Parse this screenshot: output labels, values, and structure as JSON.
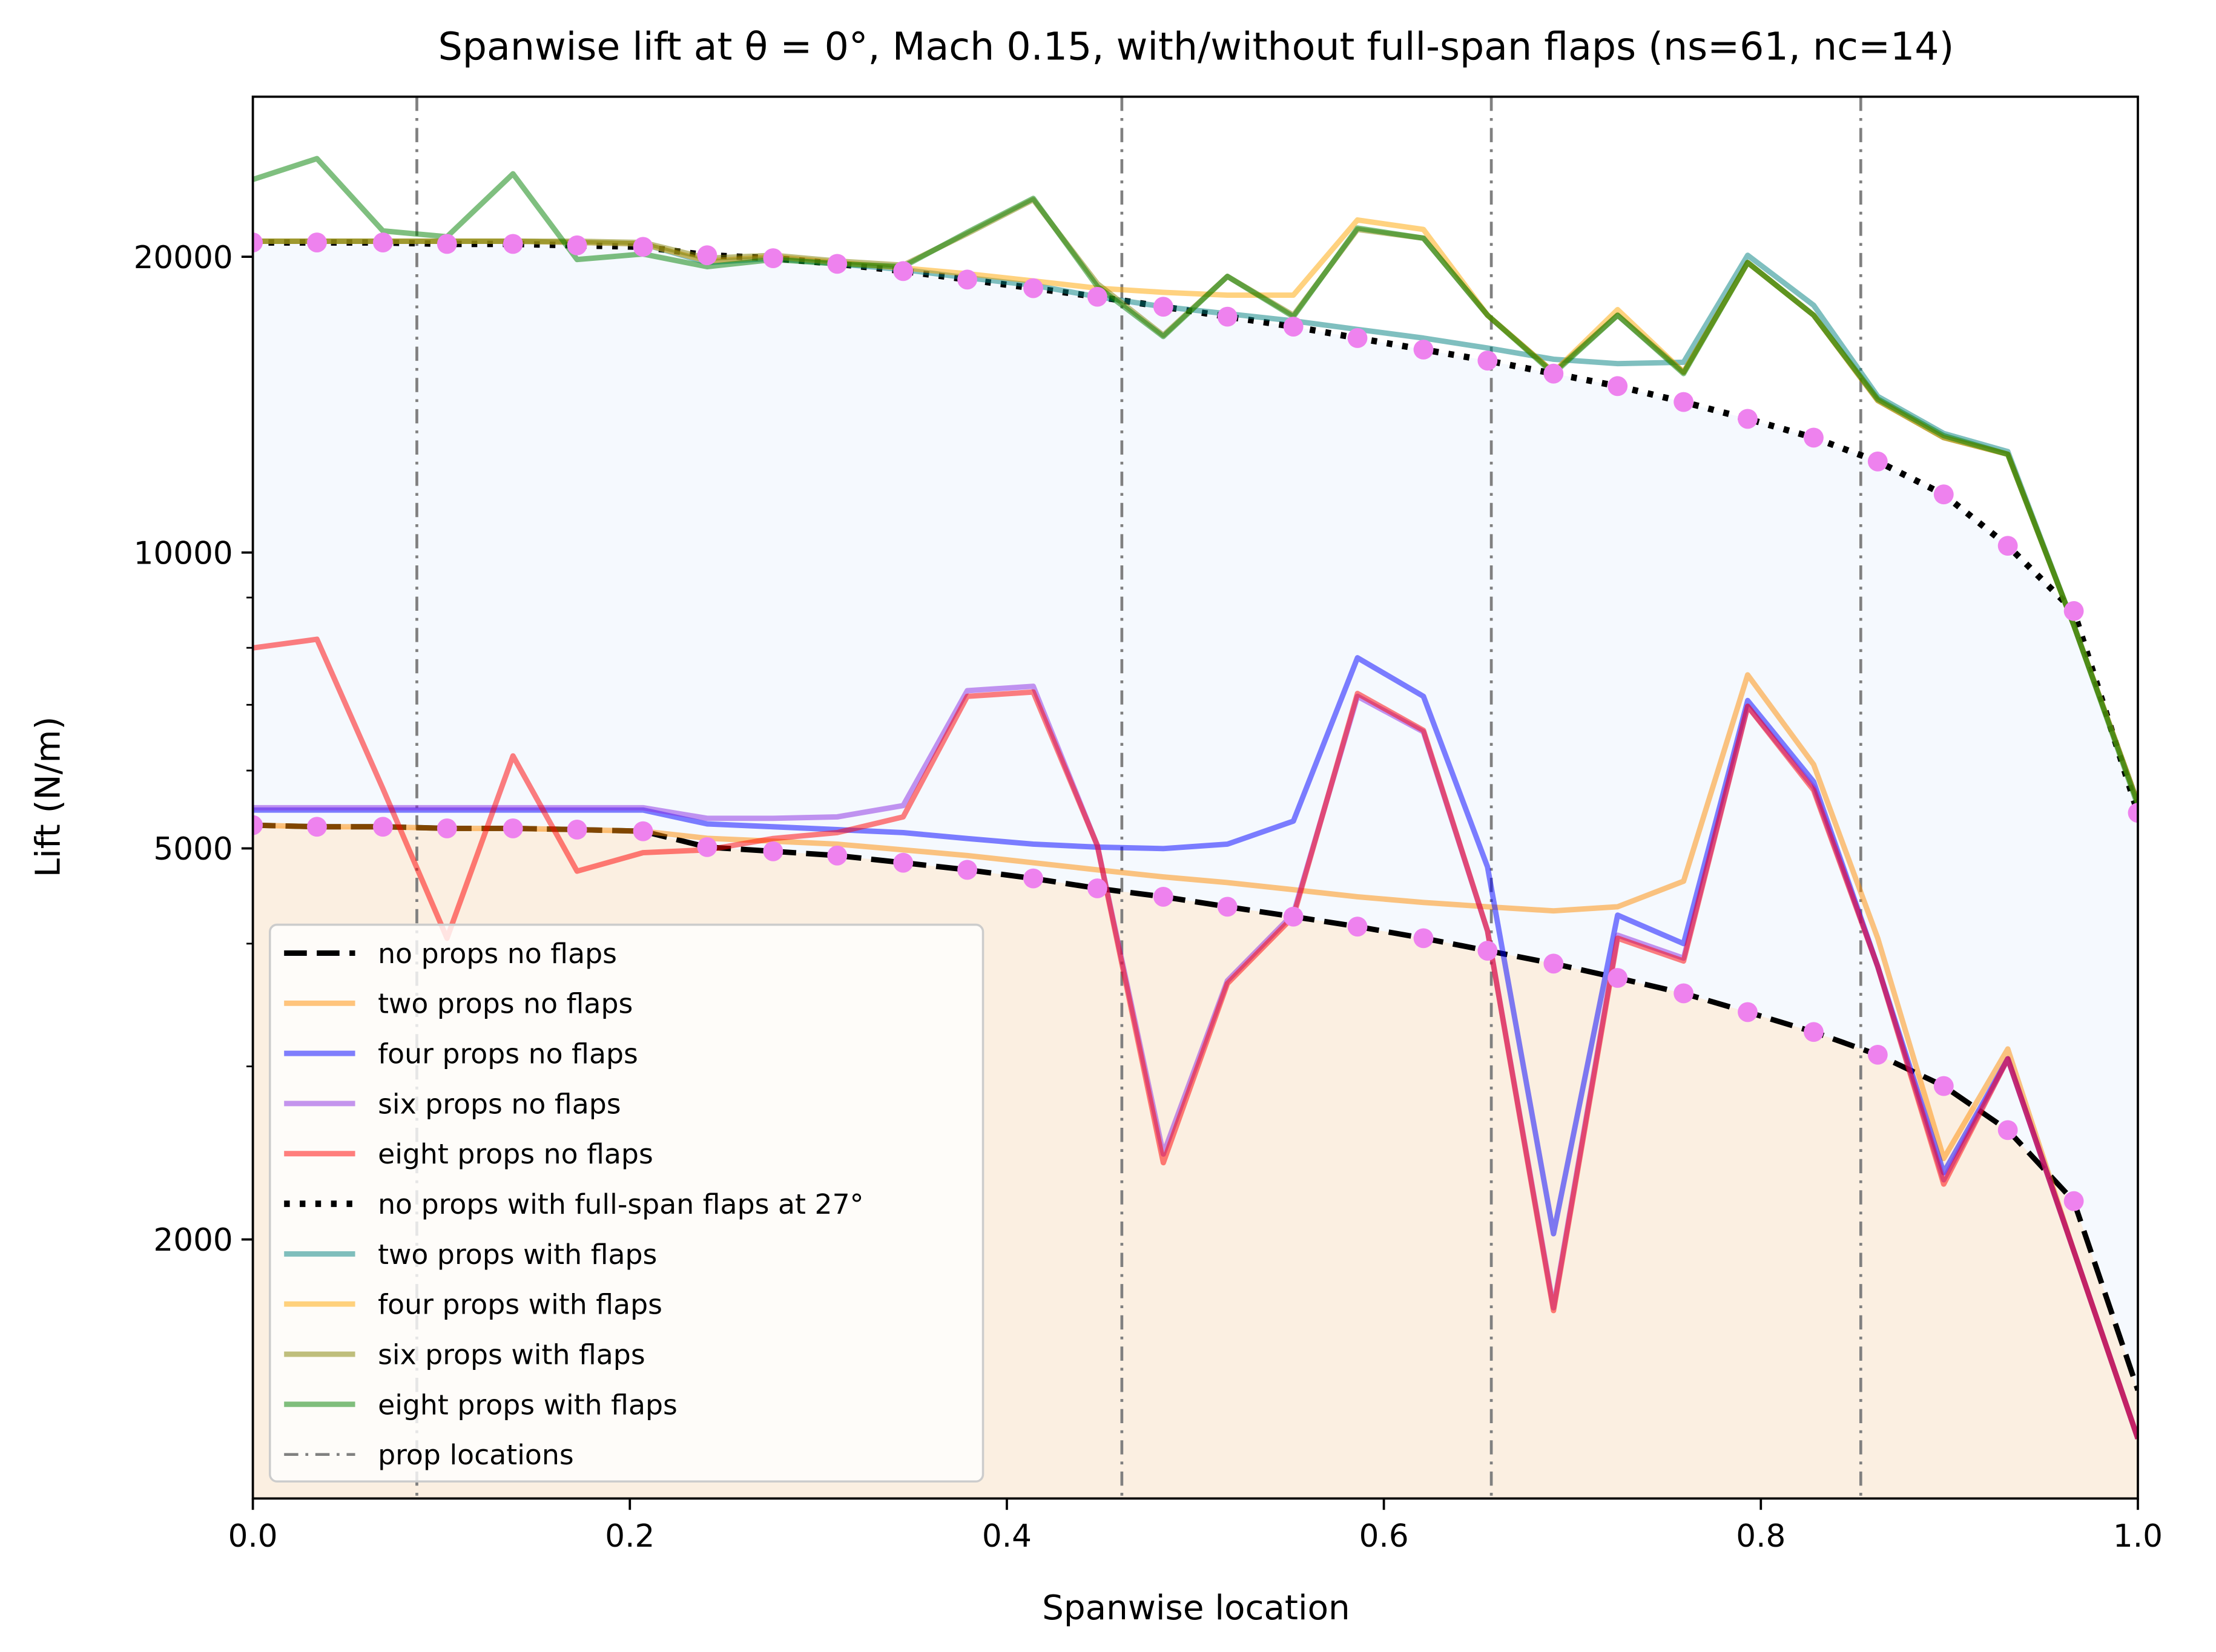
{
  "chart_data": {
    "type": "line",
    "title": "Spanwise lift at θ = 0°, Mach 0.15, with/without full-span flaps (ns=61, nc=14)",
    "xlabel": "Spanwise location",
    "ylabel": "Lift (N/m)",
    "x": [
      0,
      0.034,
      0.069,
      0.103,
      0.138,
      0.172,
      0.207,
      0.241,
      0.276,
      0.31,
      0.345,
      0.379,
      0.414,
      0.448,
      0.483,
      0.517,
      0.552,
      0.586,
      0.621,
      0.655,
      0.69,
      0.724,
      0.759,
      0.793,
      0.828,
      0.862,
      0.897,
      0.931,
      0.966,
      1
    ],
    "xlim": [
      0,
      1
    ],
    "xticks": [
      {
        "value": 0,
        "label": "0.0"
      },
      0.2,
      0.4,
      0.6,
      0.8,
      {
        "value": 1,
        "label": "1.0"
      }
    ],
    "ylim": [
      1090,
      29100
    ],
    "yscale": "log",
    "yticks": [
      2000,
      5000,
      10000,
      20000
    ],
    "yminorticks": [
      3000,
      4000,
      6000,
      7000,
      8000,
      9000
    ],
    "legend": "lower left",
    "series": [
      {
        "name": "no props no flaps",
        "color": "#000000",
        "alpha": 1,
        "dash": "dashed",
        "fill": "#fbefe1",
        "values": [
          5280,
          5260,
          5260,
          5240,
          5240,
          5225,
          5205,
          5015,
          4966,
          4917,
          4835,
          4755,
          4660,
          4553,
          4464,
          4361,
          4261,
          4163,
          4051,
          3934,
          3817,
          3691,
          3560,
          3407,
          3252,
          3083,
          2865,
          2584,
          2188,
          1405
        ]
      },
      {
        "name": "two props no flaps",
        "color": "#ff8c00",
        "alpha": 0.5,
        "dash": "solid",
        "values": [
          5280,
          5260,
          5260,
          5240,
          5240,
          5225,
          5205,
          5120,
          5085,
          5050,
          4983,
          4917,
          4835,
          4755,
          4677,
          4615,
          4539,
          4464,
          4405,
          4361,
          4319,
          4361,
          4630,
          7508,
          6085,
          4051,
          2418,
          3125,
          1947,
          1254
        ]
      },
      {
        "name": "four props no flaps",
        "color": "#0000ff",
        "alpha": 0.5,
        "dash": "solid",
        "values": [
          5470,
          5470,
          5470,
          5470,
          5470,
          5470,
          5470,
          5295,
          5260,
          5225,
          5188,
          5117,
          5050,
          5015,
          4998,
          5050,
          5330,
          7815,
          7140,
          4787,
          2027,
          4276,
          4000,
          7070,
          5845,
          3791,
          2339,
          3054,
          1947,
          1254
        ]
      },
      {
        "name": "six props no flaps",
        "color": "#8a2be2",
        "alpha": 0.5,
        "dash": "solid",
        "values": [
          5500,
          5500,
          5500,
          5500,
          5500,
          5500,
          5500,
          5365,
          5365,
          5383,
          5528,
          7235,
          7310,
          5033,
          2443,
          3667,
          4290,
          7140,
          6570,
          4120,
          1704,
          4080,
          3866,
          6976,
          5768,
          3791,
          2300,
          3054,
          1947,
          1254
        ]
      },
      {
        "name": "eight props no flaps",
        "color": "#ff0000",
        "alpha": 0.5,
        "dash": "solid",
        "values": [
          7998,
          8162,
          5750,
          4051,
          6210,
          4740,
          4950,
          4983,
          5117,
          5188,
          5383,
          7140,
          7212,
          5033,
          2394,
          3643,
          4261,
          7188,
          6593,
          4120,
          1693,
          4051,
          3840,
          6976,
          5730,
          3791,
          2277,
          3054,
          1947,
          1254
        ]
      },
      {
        "name": "no props with full-span flaps at 27°",
        "color": "#000000",
        "alpha": 1,
        "dash": "dotted",
        "fill": "#f5f9fe",
        "values": [
          20680,
          20680,
          20680,
          20610,
          20610,
          20540,
          20470,
          20070,
          19930,
          19670,
          19340,
          18960,
          18580,
          18210,
          17790,
          17380,
          16980,
          16530,
          16090,
          15680,
          15210,
          14770,
          14230,
          13680,
          13090,
          12380,
          11460,
          10160,
          8720,
          5435
        ]
      },
      {
        "name": "two props with flaps",
        "color": "#008080",
        "alpha": 0.5,
        "dash": "solid",
        "values": [
          20740,
          20740,
          20740,
          20740,
          20740,
          20680,
          20610,
          19730,
          19930,
          19670,
          19410,
          19040,
          18710,
          18210,
          17790,
          17500,
          17210,
          16870,
          16530,
          16150,
          15730,
          15570,
          15620,
          20070,
          17850,
          14420,
          13220,
          12670,
          8435,
          5563
        ]
      },
      {
        "name": "four props with flaps",
        "color": "#ffa500",
        "alpha": 0.5,
        "dash": "solid",
        "values": [
          20740,
          20740,
          20740,
          20740,
          20740,
          20680,
          20610,
          19800,
          20000,
          19730,
          19480,
          19220,
          18900,
          18580,
          18400,
          18280,
          18280,
          21800,
          21320,
          17440,
          15260,
          17670,
          15260,
          19730,
          17440,
          14280,
          13090,
          12590,
          8435,
          5563
        ]
      },
      {
        "name": "six props with flaps",
        "color": "#808000",
        "alpha": 0.5,
        "dash": "solid",
        "values": [
          20740,
          20740,
          20740,
          20740,
          20740,
          20740,
          20680,
          19930,
          20070,
          19800,
          19610,
          21110,
          22860,
          18780,
          16640,
          19100,
          17440,
          21320,
          20890,
          17440,
          15260,
          17440,
          15260,
          19730,
          17440,
          14280,
          13090,
          12590,
          8435,
          5563
        ]
      },
      {
        "name": "eight props with flaps",
        "color": "#008000",
        "alpha": 0.5,
        "dash": "solid",
        "values": [
          23970,
          25170,
          21250,
          20960,
          24290,
          19870,
          20130,
          19540,
          19870,
          19670,
          19540,
          21180,
          22930,
          18650,
          16590,
          19100,
          17380,
          21390,
          20890,
          17440,
          15210,
          17440,
          15210,
          19730,
          17440,
          14330,
          13150,
          12590,
          8435,
          5528
        ]
      },
      {
        "color": "#ee82ee",
        "alpha": 1,
        "marker": "o",
        "values": [
          20680,
          20680,
          20680,
          20610,
          20610,
          20540,
          20470,
          20070,
          19930,
          19670,
          19340,
          18960,
          18580,
          18210,
          17790,
          17380,
          16980,
          16530,
          16090,
          15680,
          15210,
          14770,
          14230,
          13680,
          13090,
          12380,
          11460,
          10160,
          8720,
          5435
        ]
      },
      {
        "color": "#ee82ee",
        "alpha": 1,
        "marker": "o",
        "values": [
          5280,
          5260,
          5260,
          5240,
          5240,
          5225,
          5205,
          5015,
          4966,
          4917,
          4835,
          4755,
          4660,
          4553,
          4464,
          4361,
          4261,
          4163,
          4051,
          3934,
          3817,
          3691,
          3560,
          3407,
          3252,
          3083,
          2865,
          2584,
          2188,
          null
        ]
      }
    ],
    "prop_lines": {
      "name": "prop locations",
      "color": "#808080",
      "dash": "dashdot",
      "x": [
        0.087,
        0.461,
        0.657,
        0.853
      ]
    }
  }
}
